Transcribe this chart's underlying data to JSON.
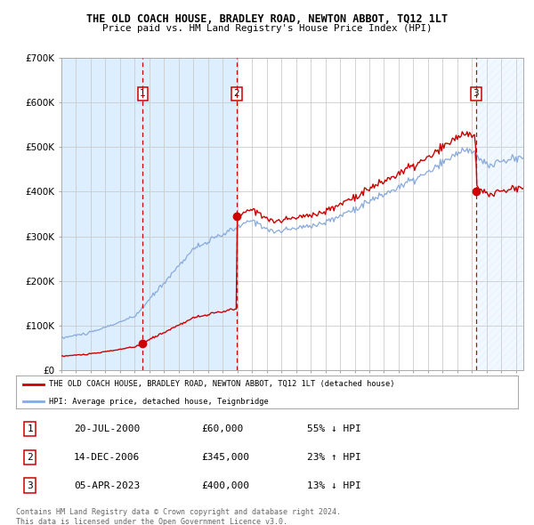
{
  "title": "THE OLD COACH HOUSE, BRADLEY ROAD, NEWTON ABBOT, TQ12 1LT",
  "subtitle": "Price paid vs. HM Land Registry's House Price Index (HPI)",
  "xmin": 1995.0,
  "xmax": 2026.5,
  "ymin": 0,
  "ymax": 700000,
  "yticks": [
    0,
    100000,
    200000,
    300000,
    400000,
    500000,
    600000,
    700000
  ],
  "ytick_labels": [
    "£0",
    "£100K",
    "£200K",
    "£300K",
    "£400K",
    "£500K",
    "£600K",
    "£700K"
  ],
  "sale1_date": 2000.55,
  "sale1_price": 60000,
  "sale2_date": 2006.96,
  "sale2_price": 345000,
  "sale3_date": 2023.27,
  "sale3_price": 400000,
  "sale_color": "#cc0000",
  "hpi_color": "#88aadd",
  "bg_color": "#ddeeff",
  "grid_color": "#cccccc",
  "legend_label_red": "THE OLD COACH HOUSE, BRADLEY ROAD, NEWTON ABBOT, TQ12 1LT (detached house)",
  "legend_label_blue": "HPI: Average price, detached house, Teignbridge",
  "table_data": [
    [
      "1",
      "20-JUL-2000",
      "£60,000",
      "55% ↓ HPI"
    ],
    [
      "2",
      "14-DEC-2006",
      "£345,000",
      "23% ↑ HPI"
    ],
    [
      "3",
      "05-APR-2023",
      "£400,000",
      "13% ↓ HPI"
    ]
  ],
  "footer": "Contains HM Land Registry data © Crown copyright and database right 2024.\nThis data is licensed under the Open Government Licence v3.0."
}
